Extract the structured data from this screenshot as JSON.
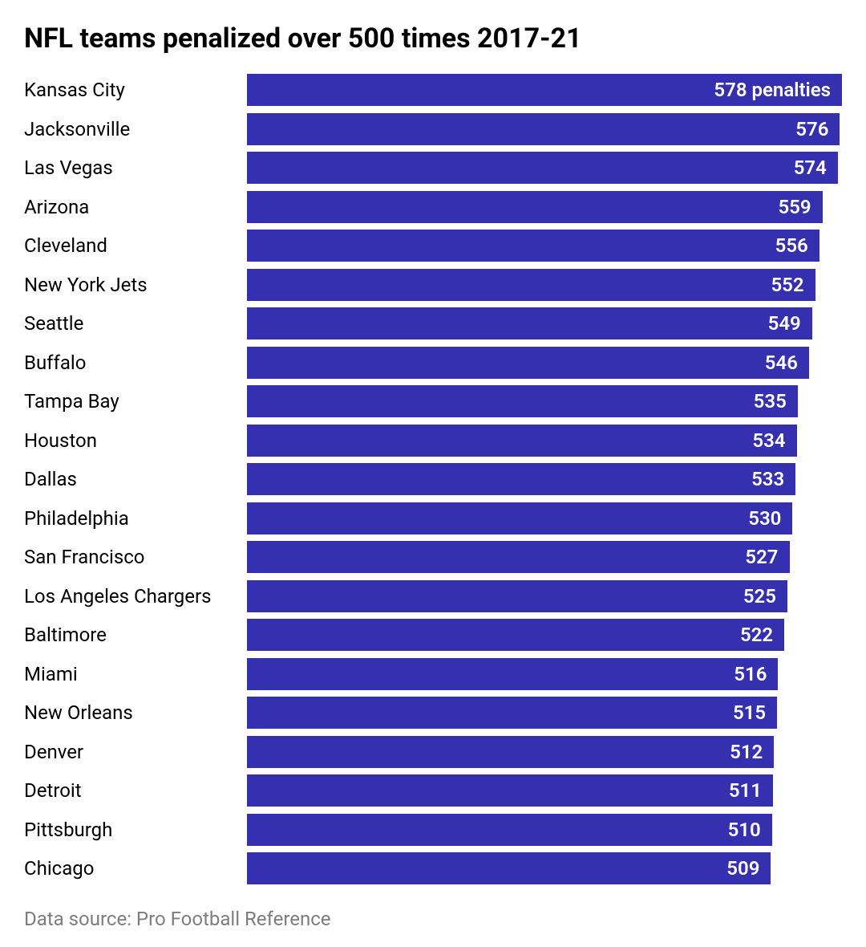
{
  "chart": {
    "type": "bar",
    "title": "NFL teams penalized over 500 times 2017-21",
    "title_fontsize": 34,
    "label_fontsize": 24,
    "value_fontsize": 24,
    "source_fontsize": 24,
    "bar_color": "#3430af",
    "bar_text_color": "#ffffff",
    "label_text_color": "#000000",
    "source_text_color": "#7d7d7d",
    "background_color": "#ffffff",
    "value_max": 578,
    "first_value_suffix": " penalties",
    "bars": [
      {
        "label": "Kansas City",
        "value": 578
      },
      {
        "label": "Jacksonville",
        "value": 576
      },
      {
        "label": "Las Vegas",
        "value": 574
      },
      {
        "label": "Arizona",
        "value": 559
      },
      {
        "label": "Cleveland",
        "value": 556
      },
      {
        "label": "New York Jets",
        "value": 552
      },
      {
        "label": "Seattle",
        "value": 549
      },
      {
        "label": "Buffalo",
        "value": 546
      },
      {
        "label": "Tampa Bay",
        "value": 535
      },
      {
        "label": "Houston",
        "value": 534
      },
      {
        "label": "Dallas",
        "value": 533
      },
      {
        "label": "Philadelphia",
        "value": 530
      },
      {
        "label": "San Francisco",
        "value": 527
      },
      {
        "label": "Los Angeles Chargers",
        "value": 525
      },
      {
        "label": "Baltimore",
        "value": 522
      },
      {
        "label": "Miami",
        "value": 516
      },
      {
        "label": "New Orleans",
        "value": 515
      },
      {
        "label": "Denver",
        "value": 512
      },
      {
        "label": "Detroit",
        "value": 511
      },
      {
        "label": "Pittsburgh",
        "value": 510
      },
      {
        "label": "Chicago",
        "value": 509
      }
    ],
    "source": "Data source: Pro Football Reference"
  }
}
